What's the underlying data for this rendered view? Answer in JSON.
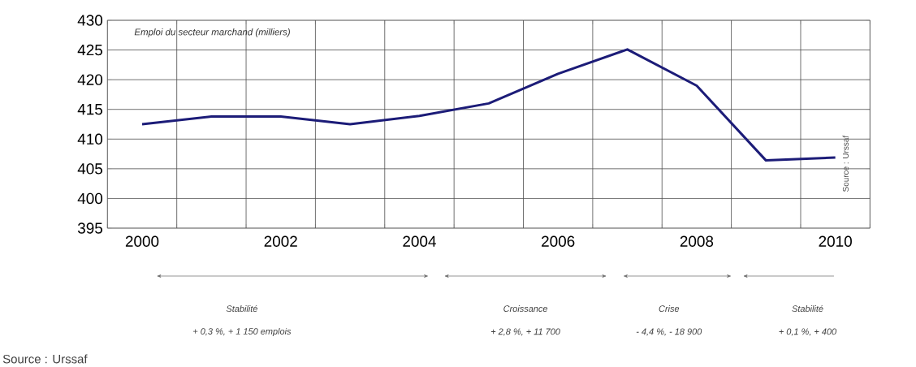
{
  "chart_data": {
    "type": "line",
    "title": "Emploi du secteur marchand (milliers)",
    "categories": [
      "2000",
      null,
      "2002",
      null,
      "2004",
      null,
      "2006",
      null,
      "2008",
      null,
      "2010"
    ],
    "series": [
      {
        "color": "#1c1c78",
        "values": [
          412.5,
          413.8,
          413.8,
          412.5,
          413.9,
          416.0,
          421.0,
          425.1,
          419.0,
          406.4,
          406.9
        ]
      }
    ],
    "ylim": [
      395,
      430
    ],
    "yticks": [
      395,
      400,
      405,
      410,
      415,
      420,
      425,
      430
    ],
    "grid": true,
    "marker": "none",
    "line_style": "solid",
    "annotations": [
      "Source : Urssaf",
      "Stabilité",
      "+ 0,3 %, + 1 150 emplois",
      "Croissance",
      "+ 2,8 %, + 11 700",
      "Crise",
      "- 4,4 %, - 18 900",
      "Stabilité",
      "+ 0,1 %, + 400",
      "Source : Urssaf"
    ]
  }
}
